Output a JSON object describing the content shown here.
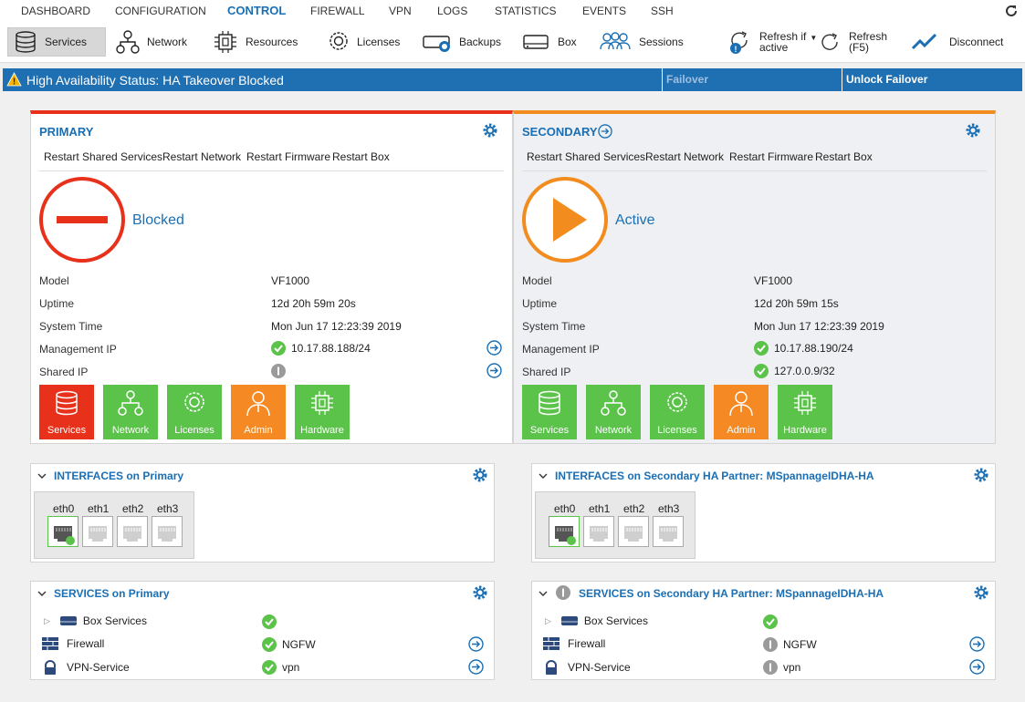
{
  "menu": {
    "items": [
      "DASHBOARD",
      "CONFIGURATION",
      "CONTROL",
      "FIREWALL",
      "VPN",
      "LOGS",
      "STATISTICS",
      "EVENTS",
      "SSH"
    ],
    "active": "CONTROL"
  },
  "toolbar": {
    "services": "Services",
    "network": "Network",
    "resources": "Resources",
    "licenses": "Licenses",
    "backups": "Backups",
    "box": "Box",
    "sessions": "Sessions",
    "refresh_active_1": "Refresh if",
    "refresh_active_2": "active",
    "refresh_1": "Refresh",
    "refresh_2": "(F5)",
    "disconnect": "Disconnect"
  },
  "ha": {
    "status": "High Availability Status: HA Takeover Blocked",
    "failover": "Failover",
    "unlock": "Unlock Failover"
  },
  "primary": {
    "title": "PRIMARY",
    "restart": [
      "Restart Shared Services",
      "Restart Network",
      "Restart Firmware",
      "Restart Box"
    ],
    "state": "Blocked",
    "labels": [
      "Model",
      "Uptime",
      "System Time",
      "Management IP",
      "Shared IP"
    ],
    "model": "VF1000",
    "uptime": "12d 20h 59m 20s",
    "system_time": "Mon Jun 17 12:23:39 2019",
    "mgmt_ip": "10.17.88.188/24",
    "tiles": [
      "Services",
      "Network",
      "Licenses",
      "Admin",
      "Hardware"
    ]
  },
  "secondary": {
    "title": "SECONDARY",
    "restart": [
      "Restart Shared Services",
      "Restart Network",
      "Restart Firmware",
      "Restart Box"
    ],
    "state": "Active",
    "labels": [
      "Model",
      "Uptime",
      "System Time",
      "Management IP",
      "Shared IP"
    ],
    "model": "VF1000",
    "uptime": "12d 20h 59m 15s",
    "system_time": "Mon Jun 17 12:23:39 2019",
    "mgmt_ip": "10.17.88.190/24",
    "shared_ip": "127.0.0.9/32",
    "tiles": [
      "Services",
      "Network",
      "Licenses",
      "Admin",
      "Hardware"
    ]
  },
  "interfaces": {
    "primary_title": "INTERFACES on Primary",
    "secondary_title": "INTERFACES on Secondary HA Partner: MSpannageIDHA-HA",
    "ports": [
      "eth0",
      "eth1",
      "eth2",
      "eth3"
    ]
  },
  "services": {
    "primary_title": "SERVICES on Primary",
    "secondary_title": "SERVICES on Secondary HA Partner: MSpannageIDHA-HA",
    "rows": [
      "Box Services",
      "Firewall",
      "VPN-Service"
    ],
    "primary_values": [
      "",
      "NGFW",
      "vpn"
    ],
    "secondary_values": [
      "",
      "NGFW",
      "vpn"
    ]
  },
  "colors": {
    "accent": "#1f6fb3",
    "blocked": "#e8311b",
    "active": "#f28c1f",
    "ok": "#5bc24a"
  }
}
